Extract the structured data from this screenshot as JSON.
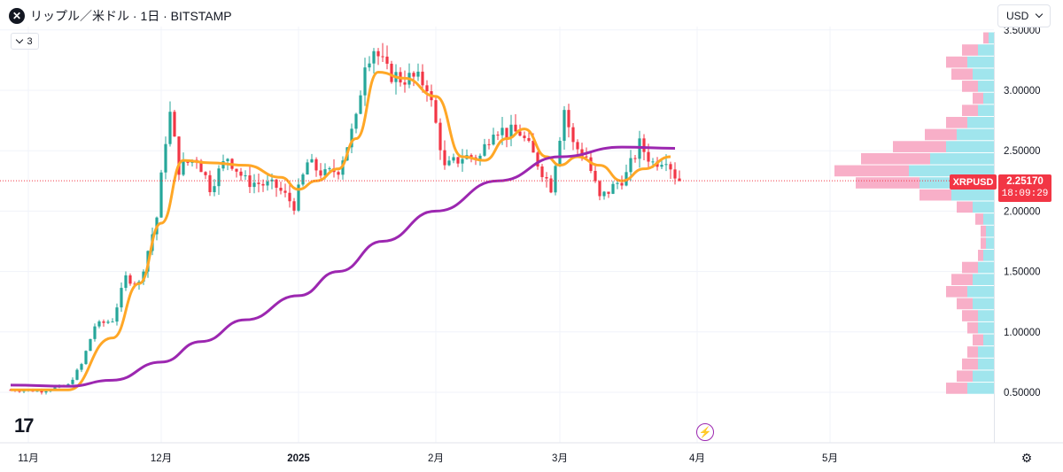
{
  "header": {
    "symbol_icon": "close-circle-icon",
    "title": "リップル／米ドル · 1日 · BITSTAMP",
    "indicator_count": "3",
    "currency": "USD"
  },
  "logo_icon": "tradingview-logo",
  "footer": {
    "bolt_icon": "lightning-icon",
    "settings_icon": "gear-icon"
  },
  "price_tag": {
    "symbol": "XRPUSD",
    "price": "2.25170",
    "countdown": "18:09:29"
  },
  "colors": {
    "up": "#26a69a",
    "down": "#f23645",
    "ma_fast": "#ffa726",
    "ma_slow": "#9c27b0",
    "vp_up": "#8fe0ea",
    "vp_down": "#f7a1be"
  },
  "chart_data": {
    "type": "candlestick",
    "y_axis": {
      "ticks": [
        0.5,
        1.0,
        1.5,
        2.0,
        2.5,
        3.0,
        3.5
      ],
      "tick_labels": [
        "0.50000",
        "1.00000",
        "1.50000",
        "2.00000",
        "2.50000",
        "3.00000",
        "3.50000"
      ]
    },
    "x_axis": {
      "labels": [
        {
          "text": "11月",
          "date": "2024-11-01",
          "bold": false
        },
        {
          "text": "12月",
          "date": "2024-12-01",
          "bold": false
        },
        {
          "text": "2025",
          "date": "2025-01-01",
          "bold": true
        },
        {
          "text": "2月",
          "date": "2025-02-01",
          "bold": false
        },
        {
          "text": "3月",
          "date": "2025-03-01",
          "bold": false
        },
        {
          "text": "4月",
          "date": "2025-04-01",
          "bold": false
        },
        {
          "text": "5月",
          "date": "2025-05-01",
          "bold": false
        }
      ]
    },
    "last_price": 2.2517,
    "close_anchors": [
      [
        "2024-10-28",
        0.52
      ],
      [
        "2024-11-04",
        0.51
      ],
      [
        "2024-11-10",
        0.56
      ],
      [
        "2024-11-13",
        0.73
      ],
      [
        "2024-11-16",
        1.05
      ],
      [
        "2024-11-20",
        1.1
      ],
      [
        "2024-11-23",
        1.45
      ],
      [
        "2024-11-26",
        1.4
      ],
      [
        "2024-11-30",
        1.95
      ],
      [
        "2024-12-02",
        2.6
      ],
      [
        "2024-12-03",
        2.8
      ],
      [
        "2024-12-05",
        2.35
      ],
      [
        "2024-12-09",
        2.45
      ],
      [
        "2024-12-12",
        2.2
      ],
      [
        "2024-12-16",
        2.45
      ],
      [
        "2024-12-20",
        2.25
      ],
      [
        "2024-12-27",
        2.2
      ],
      [
        "2024-12-31",
        2.05
      ],
      [
        "2025-01-03",
        2.4
      ],
      [
        "2025-01-07",
        2.3
      ],
      [
        "2025-01-10",
        2.35
      ],
      [
        "2025-01-14",
        2.75
      ],
      [
        "2025-01-16",
        3.25
      ],
      [
        "2025-01-18",
        3.35
      ],
      [
        "2025-01-21",
        3.15
      ],
      [
        "2025-01-24",
        3.1
      ],
      [
        "2025-01-27",
        3.1
      ],
      [
        "2025-01-30",
        3.05
      ],
      [
        "2025-02-02",
        2.55
      ],
      [
        "2025-02-03",
        2.35
      ],
      [
        "2025-02-07",
        2.45
      ],
      [
        "2025-02-11",
        2.45
      ],
      [
        "2025-02-14",
        2.7
      ],
      [
        "2025-02-17",
        2.65
      ],
      [
        "2025-02-20",
        2.65
      ],
      [
        "2025-02-24",
        2.4
      ],
      [
        "2025-02-27",
        2.2
      ],
      [
        "2025-03-02",
        2.85
      ],
      [
        "2025-03-04",
        2.55
      ],
      [
        "2025-03-07",
        2.45
      ],
      [
        "2025-03-10",
        2.1
      ],
      [
        "2025-03-13",
        2.2
      ],
      [
        "2025-03-16",
        2.3
      ],
      [
        "2025-03-19",
        2.55
      ],
      [
        "2025-03-22",
        2.4
      ],
      [
        "2025-03-25",
        2.45
      ],
      [
        "2025-03-27",
        2.3
      ],
      [
        "2025-03-28",
        2.25
      ]
    ],
    "series": [
      {
        "name": "",
        "type": "ma",
        "color": "#ffa726",
        "points": [
          [
            "2024-10-28",
            0.52
          ],
          [
            "2024-11-10",
            0.52
          ],
          [
            "2024-11-20",
            0.95
          ],
          [
            "2024-11-26",
            1.4
          ],
          [
            "2024-12-01",
            1.9
          ],
          [
            "2024-12-06",
            2.42
          ],
          [
            "2024-12-12",
            2.4
          ],
          [
            "2024-12-20",
            2.38
          ],
          [
            "2024-12-28",
            2.28
          ],
          [
            "2025-01-01",
            2.18
          ],
          [
            "2025-01-05",
            2.25
          ],
          [
            "2025-01-10",
            2.35
          ],
          [
            "2025-01-14",
            2.6
          ],
          [
            "2025-01-19",
            3.15
          ],
          [
            "2025-01-25",
            3.1
          ],
          [
            "2025-02-01",
            2.95
          ],
          [
            "2025-02-07",
            2.45
          ],
          [
            "2025-02-12",
            2.42
          ],
          [
            "2025-02-17",
            2.6
          ],
          [
            "2025-02-21",
            2.68
          ],
          [
            "2025-02-26",
            2.45
          ],
          [
            "2025-03-01",
            2.38
          ],
          [
            "2025-03-05",
            2.45
          ],
          [
            "2025-03-10",
            2.38
          ],
          [
            "2025-03-15",
            2.25
          ],
          [
            "2025-03-20",
            2.35
          ],
          [
            "2025-03-26",
            2.45
          ]
        ]
      },
      {
        "name": "",
        "type": "ma",
        "color": "#9c27b0",
        "points": [
          [
            "2024-10-28",
            0.56
          ],
          [
            "2024-11-10",
            0.55
          ],
          [
            "2024-11-20",
            0.6
          ],
          [
            "2024-12-01",
            0.75
          ],
          [
            "2024-12-10",
            0.92
          ],
          [
            "2024-12-20",
            1.1
          ],
          [
            "2025-01-01",
            1.3
          ],
          [
            "2025-01-10",
            1.5
          ],
          [
            "2025-01-20",
            1.75
          ],
          [
            "2025-02-01",
            2.0
          ],
          [
            "2025-02-15",
            2.25
          ],
          [
            "2025-03-01",
            2.45
          ],
          [
            "2025-03-15",
            2.53
          ],
          [
            "2025-03-27",
            2.52
          ]
        ]
      }
    ],
    "volume_profile": {
      "bins": [
        [
          0.48,
          5,
          4
        ],
        [
          0.58,
          4,
          3
        ],
        [
          0.68,
          3,
          3
        ],
        [
          0.78,
          3,
          2
        ],
        [
          0.88,
          2,
          2
        ],
        [
          0.98,
          3,
          2
        ],
        [
          1.08,
          3,
          3
        ],
        [
          1.18,
          4,
          3
        ],
        [
          1.28,
          5,
          4
        ],
        [
          1.38,
          4,
          4
        ],
        [
          1.48,
          3,
          3
        ],
        [
          1.58,
          2,
          1
        ],
        [
          1.68,
          1.5,
          1
        ],
        [
          1.78,
          1.5,
          1
        ],
        [
          1.88,
          2,
          1.5
        ],
        [
          1.98,
          4,
          3
        ],
        [
          2.08,
          8,
          6
        ],
        [
          2.18,
          14,
          12
        ],
        [
          2.28,
          16,
          14
        ],
        [
          2.38,
          12,
          13
        ],
        [
          2.48,
          9,
          10
        ],
        [
          2.58,
          7,
          6
        ],
        [
          2.68,
          5,
          4
        ],
        [
          2.78,
          3,
          3
        ],
        [
          2.88,
          2,
          2
        ],
        [
          2.98,
          3,
          3
        ],
        [
          3.08,
          4,
          4
        ],
        [
          3.18,
          5,
          4
        ],
        [
          3.28,
          3,
          3
        ],
        [
          3.38,
          1,
          1
        ]
      ]
    }
  }
}
